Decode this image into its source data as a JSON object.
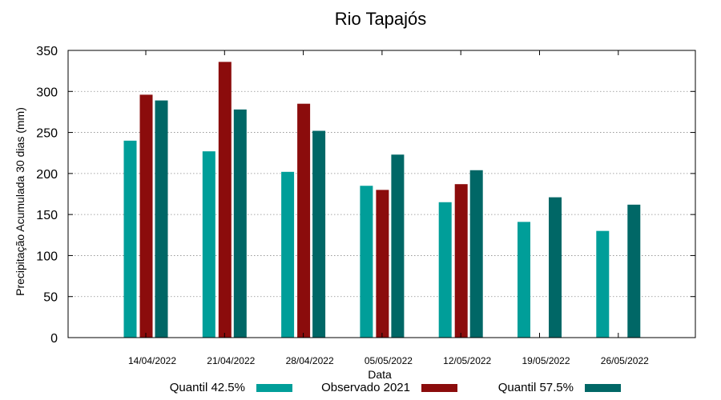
{
  "chart_data": {
    "type": "bar",
    "title": "Rio Tapajós",
    "xlabel": "Data",
    "ylabel": "Precipitação Acumulada 30 dias (mm)",
    "ylim": [
      0,
      350
    ],
    "yticks": [
      0,
      50,
      100,
      150,
      200,
      250,
      300,
      350
    ],
    "categories": [
      "14/04/2022",
      "21/04/2022",
      "28/04/2022",
      "05/05/2022",
      "12/05/2022",
      "19/05/2022",
      "26/05/2022"
    ],
    "grid": "horizontal dotted",
    "legend_position": "bottom",
    "series": [
      {
        "name": "Quantil 42.5%",
        "color": "#009e99",
        "values": [
          240,
          227,
          202,
          185,
          165,
          141,
          130
        ]
      },
      {
        "name": "Observado 2021",
        "color": "#8b0c0c",
        "values": [
          296,
          336,
          285,
          180,
          187,
          null,
          null
        ]
      },
      {
        "name": "Quantil 57.5%",
        "color": "#006766",
        "values": [
          289,
          278,
          252,
          223,
          204,
          171,
          162
        ]
      }
    ]
  }
}
